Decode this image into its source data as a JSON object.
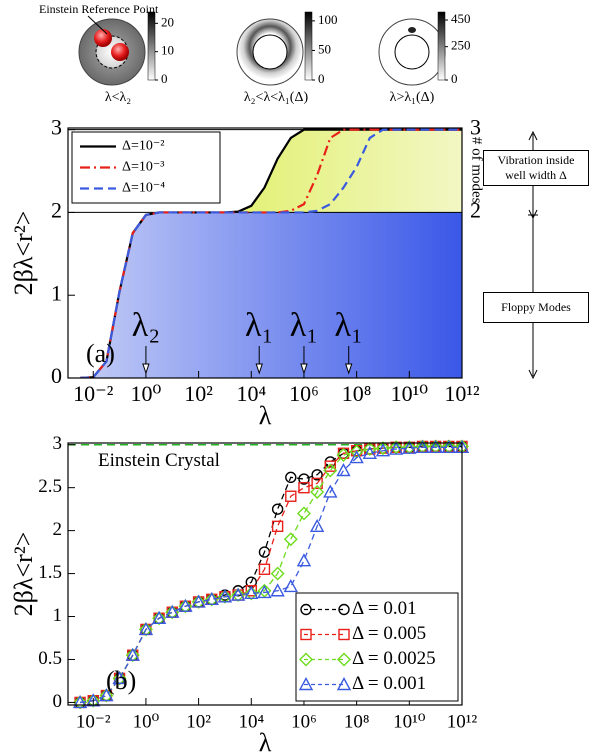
{
  "insets": [
    {
      "caption": "λ<λ₂",
      "colorbar_ticks": [
        0,
        10,
        20
      ],
      "clim": [
        0,
        24
      ],
      "annotation": "Einstein Reference Point"
    },
    {
      "caption": "λ₂<λ<λ₁(Δ)",
      "colorbar_ticks": [
        0,
        50,
        100
      ],
      "clim": [
        0,
        115
      ]
    },
    {
      "caption": "λ>λ₁(Δ)",
      "colorbar_ticks": [
        0,
        250,
        450
      ],
      "clim": [
        0,
        510
      ]
    }
  ],
  "chart_data": [
    {
      "type": "line",
      "panel_label": "(a)",
      "xscale": "log",
      "xlabel": "λ",
      "ylabel": "2βλ<r²>",
      "y2label": "# of modes",
      "legend": "upper-left",
      "grid": false,
      "x": [
        0.00316,
        0.01,
        0.0316,
        0.1,
        0.316,
        1,
        3.16,
        10,
        31.6,
        100,
        316,
        1000,
        3162,
        10000,
        31623,
        100000.0,
        316228,
        1000000.0,
        3162278,
        10000000.0,
        31622777,
        100000000.0,
        316227766,
        1000000000.0,
        3160000000.0,
        10000000000.0,
        31600000000.0,
        100000000000.0,
        316000000000.0,
        1000000000000.0
      ],
      "series": [
        {
          "name": "Δ=10⁻²",
          "color": "#000000",
          "dash": "solid",
          "values": [
            0,
            0.01,
            0.2,
            1.05,
            1.75,
            1.97,
            2,
            2,
            2,
            2,
            2,
            2,
            2.01,
            2.08,
            2.3,
            2.65,
            2.9,
            3,
            3,
            3,
            3,
            3,
            3,
            3,
            3,
            3,
            3,
            3,
            3,
            3
          ]
        },
        {
          "name": "Δ=10⁻³",
          "color": "#e8201a",
          "dash": "dashdot",
          "values": [
            0,
            0.01,
            0.2,
            1.05,
            1.75,
            1.97,
            2,
            2,
            2,
            2,
            2,
            2,
            2,
            2,
            2,
            2,
            2.02,
            2.1,
            2.45,
            2.9,
            3,
            3,
            3,
            3,
            3,
            3,
            3,
            3,
            3,
            3
          ]
        },
        {
          "name": "Δ=10⁻⁴",
          "color": "#3a5ae0",
          "dash": "dashed",
          "values": [
            0,
            0.01,
            0.2,
            1.05,
            1.75,
            1.97,
            2,
            2,
            2,
            2,
            2,
            2,
            2,
            2,
            2,
            2,
            2,
            2,
            2.02,
            2.1,
            2.3,
            2.55,
            2.9,
            3,
            3,
            3,
            3,
            3,
            3,
            3
          ]
        }
      ],
      "fill_colors": [
        "#3a58e8",
        "#d8ec3c"
      ],
      "xlim": [
        0.0011,
        1000000000000.0
      ],
      "xticks": [
        {
          "value": 0.01,
          "label": "10⁻²"
        },
        {
          "value": 1,
          "label": "10⁰"
        },
        {
          "value": 100,
          "label": "10²"
        },
        {
          "value": 10000,
          "label": "10⁴"
        },
        {
          "value": 1000000,
          "label": "10⁶"
        },
        {
          "value": 100000000,
          "label": "10⁸"
        },
        {
          "value": 10000000000,
          "label": "10¹⁰"
        },
        {
          "value": 1000000000000,
          "label": "10¹²"
        }
      ],
      "ylim": [
        0,
        3.02
      ],
      "yticks": [
        0,
        1,
        2,
        3
      ],
      "y2lim": [
        0,
        3.02
      ],
      "y2ticks": [
        2,
        3
      ],
      "markers": [
        {
          "label": "λ₂",
          "x": 1
        },
        {
          "label": "λ₁",
          "x": 20000
        },
        {
          "label": "λ₁",
          "x": 1000000
        },
        {
          "label": "λ₁",
          "x": 50000000
        }
      ],
      "annotations": [
        "Vibration inside well width Δ",
        "Floppy Modes"
      ]
    },
    {
      "type": "line",
      "panel_label": "(b)",
      "xscale": "log",
      "xlabel": "λ",
      "ylabel": "2βλ<r²>",
      "legend": "lower-right",
      "grid": false,
      "x": [
        0.00316,
        0.01,
        0.0316,
        0.1,
        0.316,
        1,
        3.16,
        10,
        31.6,
        100,
        316,
        1000,
        3162,
        10000,
        31623,
        100000.0,
        316228,
        1000000.0,
        3162278,
        10000000.0,
        31622777,
        100000000.0,
        316227766,
        1000000000.0,
        3160000000.0,
        10000000000.0,
        31600000000.0,
        100000000000.0,
        316000000000.0,
        1000000000000.0
      ],
      "series": [
        {
          "name": "Δ = 0.01",
          "color": "#000000",
          "marker": "circle",
          "values": [
            0,
            0.02,
            0.08,
            0.28,
            0.55,
            0.85,
            0.98,
            1.05,
            1.12,
            1.17,
            1.2,
            1.25,
            1.3,
            1.4,
            1.75,
            2.25,
            2.62,
            2.6,
            2.65,
            2.8,
            2.9,
            2.93,
            2.95,
            2.96,
            2.97,
            2.97,
            2.98,
            2.98,
            2.98,
            2.98
          ]
        },
        {
          "name": "Δ = 0.005",
          "color": "#e8201a",
          "marker": "square",
          "values": [
            0,
            0.02,
            0.08,
            0.28,
            0.55,
            0.85,
            0.98,
            1.05,
            1.12,
            1.17,
            1.2,
            1.23,
            1.25,
            1.3,
            1.55,
            2.05,
            2.4,
            2.5,
            2.55,
            2.75,
            2.9,
            2.93,
            2.95,
            2.96,
            2.97,
            2.97,
            2.98,
            2.98,
            2.98,
            2.98
          ]
        },
        {
          "name": "Δ = 0.0025",
          "color": "#6cdc1c",
          "marker": "diamond",
          "values": [
            0,
            0.02,
            0.08,
            0.28,
            0.55,
            0.85,
            0.98,
            1.05,
            1.12,
            1.17,
            1.2,
            1.23,
            1.25,
            1.27,
            1.3,
            1.5,
            1.9,
            2.2,
            2.45,
            2.7,
            2.88,
            2.92,
            2.95,
            2.96,
            2.97,
            2.97,
            2.98,
            2.98,
            2.98,
            2.98
          ]
        },
        {
          "name": "Δ = 0.001",
          "color": "#3a5ae0",
          "marker": "triangle",
          "values": [
            0,
            0.02,
            0.08,
            0.28,
            0.55,
            0.85,
            0.98,
            1.05,
            1.12,
            1.17,
            1.2,
            1.23,
            1.25,
            1.27,
            1.28,
            1.3,
            1.35,
            1.65,
            2.05,
            2.45,
            2.7,
            2.85,
            2.9,
            2.93,
            2.95,
            2.96,
            2.97,
            2.97,
            2.97,
            2.97
          ]
        }
      ],
      "reference_line": {
        "y": 3,
        "label": "Einstein Crystal",
        "color": "#22b422"
      },
      "xlim": [
        0.0011,
        1000000000000.0
      ],
      "xticks": [
        {
          "value": 0.01,
          "label": "10⁻²"
        },
        {
          "value": 1,
          "label": "10⁰"
        },
        {
          "value": 100,
          "label": "10²"
        },
        {
          "value": 10000,
          "label": "10⁴"
        },
        {
          "value": 1000000,
          "label": "10⁶"
        },
        {
          "value": 100000000,
          "label": "10⁸"
        },
        {
          "value": 10000000000,
          "label": "10¹⁰"
        },
        {
          "value": 1000000000000,
          "label": "10¹²"
        }
      ],
      "ylim": [
        -0.03,
        3.02
      ],
      "yticks": [
        0,
        0.5,
        1,
        1.5,
        2,
        2.5,
        3
      ]
    }
  ]
}
